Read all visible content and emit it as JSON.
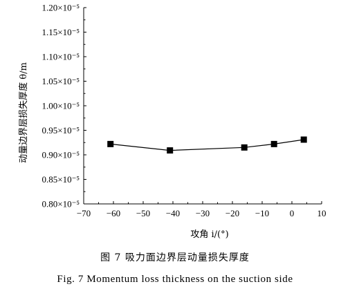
{
  "chart_data": {
    "type": "line",
    "x": [
      -61,
      -41,
      -16,
      -6,
      4
    ],
    "values": [
      9.22e-06,
      9.09e-06,
      9.15e-06,
      9.22e-06,
      9.31e-06
    ],
    "xlabel": "攻角 i/(°)",
    "ylabel": "动量边界层损失厚度 θ/m",
    "xlim": [
      -70,
      10
    ],
    "ylim": [
      8e-06,
      1.2e-05
    ],
    "xticks": [
      "−70",
      "−60",
      "−50",
      "−40",
      "−30",
      "−20",
      "−10",
      "0",
      "10"
    ],
    "yticks": [
      "0.80×10⁻⁵",
      "0.85×10⁻⁵",
      "0.90×10⁻⁵",
      "0.95×10⁻⁵",
      "1.00×10⁻⁵",
      "1.05×10⁻⁵",
      "1.10×10⁻⁵",
      "1.15×10⁻⁵",
      "1.20×10⁻⁵"
    ],
    "marker": "square",
    "grid": false
  },
  "caption": {
    "cn": "图 7   吸力面边界层动量损失厚度",
    "en": "Fig. 7   Momentum loss thickness on the suction side"
  }
}
